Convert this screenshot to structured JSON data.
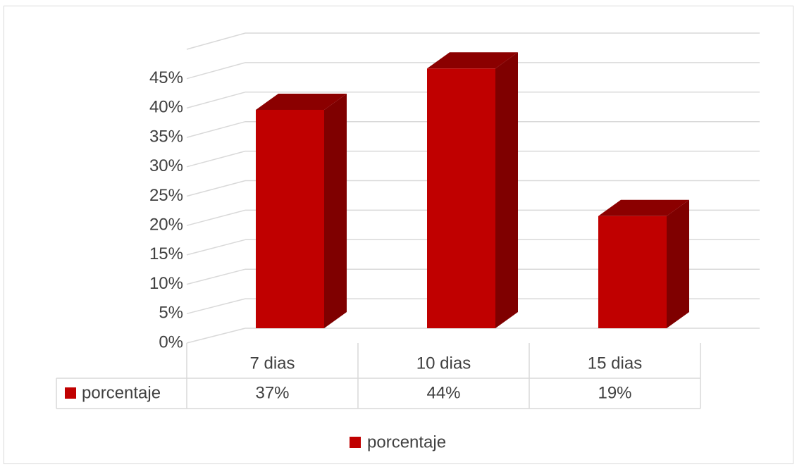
{
  "chart_data": {
    "type": "bar3d",
    "categories": [
      "7 dias",
      "10 dias",
      "15 dias"
    ],
    "series": [
      {
        "name": "porcentaje",
        "color": "#c00000",
        "values": [
          37,
          44,
          19
        ],
        "value_labels": [
          "37%",
          "44%",
          "19%"
        ]
      }
    ],
    "ylim": [
      0,
      50
    ],
    "yticks": [
      {
        "value": 0,
        "label": "0%"
      },
      {
        "value": 5,
        "label": "5%"
      },
      {
        "value": 10,
        "label": "10%"
      },
      {
        "value": 15,
        "label": "15%"
      },
      {
        "value": 20,
        "label": "20%"
      },
      {
        "value": 25,
        "label": "25%"
      },
      {
        "value": 30,
        "label": "30%"
      },
      {
        "value": 35,
        "label": "35%"
      },
      {
        "value": 40,
        "label": "40%"
      },
      {
        "value": 45,
        "label": "45%"
      }
    ],
    "grid": true,
    "data_table": true,
    "legend": "bottom"
  }
}
